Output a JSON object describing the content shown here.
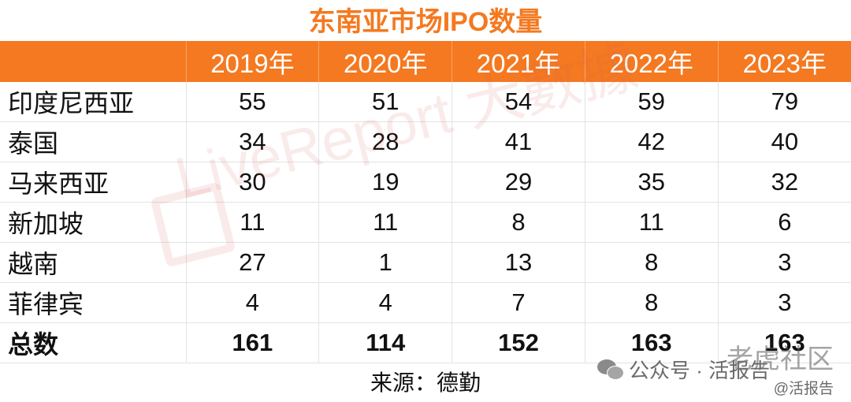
{
  "chart_data": {
    "type": "table",
    "title": "东南亚市场IPO数量",
    "columns": [
      "",
      "2019年",
      "2020年",
      "2021年",
      "2022年",
      "2023年"
    ],
    "rows": [
      {
        "label": "印度尼西亚",
        "values": [
          55,
          51,
          54,
          59,
          79
        ]
      },
      {
        "label": "泰国",
        "values": [
          34,
          28,
          41,
          42,
          40
        ]
      },
      {
        "label": "马来西亚",
        "values": [
          30,
          19,
          29,
          35,
          32
        ]
      },
      {
        "label": "新加坡",
        "values": [
          11,
          11,
          8,
          11,
          6
        ]
      },
      {
        "label": "越南",
        "values": [
          27,
          1,
          13,
          8,
          3
        ]
      },
      {
        "label": "菲律宾",
        "values": [
          4,
          4,
          7,
          8,
          3
        ]
      },
      {
        "label": "总数",
        "values": [
          161,
          114,
          152,
          163,
          163
        ]
      }
    ],
    "source": "来源：德勤"
  },
  "watermark": {
    "text": "LiveReport 大數據"
  },
  "overlay": {
    "line1": "老虎社区",
    "line2": "公众号 · 活报告",
    "line3": "@活报告"
  },
  "colors": {
    "accent": "#F47920",
    "header_text": "#ffffff"
  }
}
